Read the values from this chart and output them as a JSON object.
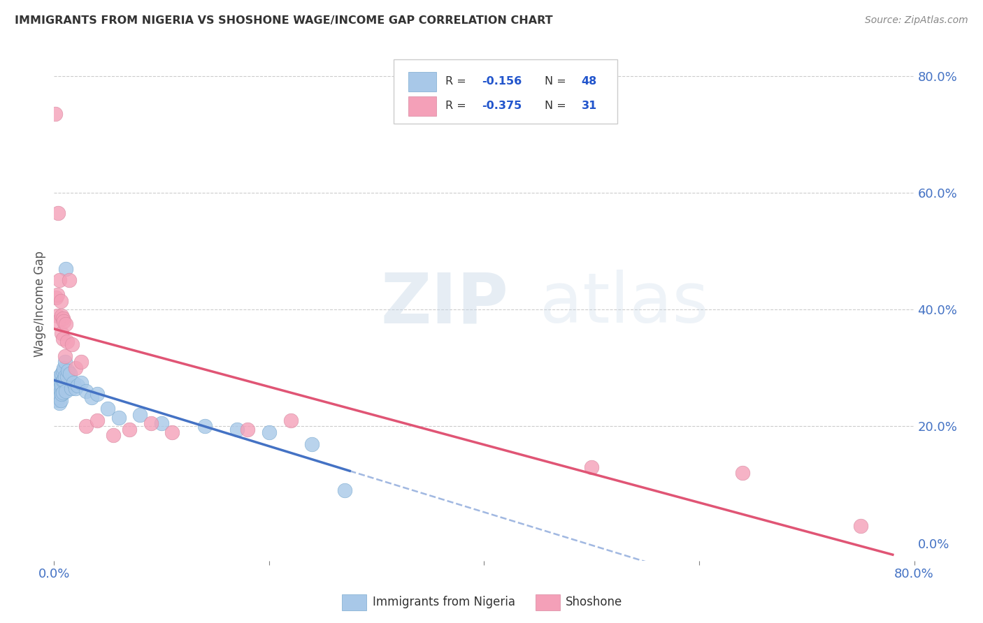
{
  "title": "IMMIGRANTS FROM NIGERIA VS SHOSHONE WAGE/INCOME GAP CORRELATION CHART",
  "source": "Source: ZipAtlas.com",
  "ylabel": "Wage/Income Gap",
  "xlim": [
    0.0,
    0.8
  ],
  "ylim": [
    -0.03,
    0.85
  ],
  "yticks_right": [
    0.0,
    0.2,
    0.4,
    0.6,
    0.8
  ],
  "ytick_right_labels": [
    "0.0%",
    "20.0%",
    "40.0%",
    "60.0%",
    "80.0%"
  ],
  "nigeria_color": "#a8c8e8",
  "shoshone_color": "#f4a0b8",
  "nigeria_line_color": "#4472c4",
  "shoshone_line_color": "#e05575",
  "watermark_zip": "ZIP",
  "watermark_atlas": "atlas",
  "nigeria_R": "-0.156",
  "nigeria_N": "48",
  "shoshone_R": "-0.375",
  "shoshone_N": "31",
  "nigeria_scatter_x": [
    0.001,
    0.002,
    0.002,
    0.003,
    0.003,
    0.003,
    0.004,
    0.004,
    0.004,
    0.005,
    0.005,
    0.005,
    0.005,
    0.006,
    0.006,
    0.006,
    0.007,
    0.007,
    0.007,
    0.008,
    0.008,
    0.008,
    0.009,
    0.009,
    0.01,
    0.01,
    0.011,
    0.011,
    0.012,
    0.013,
    0.015,
    0.016,
    0.018,
    0.02,
    0.022,
    0.025,
    0.03,
    0.035,
    0.04,
    0.05,
    0.06,
    0.08,
    0.1,
    0.14,
    0.17,
    0.2,
    0.24,
    0.27
  ],
  "nigeria_scatter_y": [
    0.255,
    0.265,
    0.25,
    0.27,
    0.26,
    0.245,
    0.28,
    0.265,
    0.25,
    0.285,
    0.27,
    0.255,
    0.24,
    0.275,
    0.26,
    0.245,
    0.29,
    0.27,
    0.255,
    0.295,
    0.278,
    0.258,
    0.3,
    0.28,
    0.31,
    0.285,
    0.47,
    0.26,
    0.285,
    0.295,
    0.29,
    0.265,
    0.275,
    0.265,
    0.27,
    0.275,
    0.26,
    0.25,
    0.255,
    0.23,
    0.215,
    0.22,
    0.205,
    0.2,
    0.195,
    0.19,
    0.17,
    0.09
  ],
  "shoshone_scatter_x": [
    0.001,
    0.002,
    0.003,
    0.003,
    0.004,
    0.004,
    0.005,
    0.006,
    0.007,
    0.007,
    0.008,
    0.008,
    0.009,
    0.01,
    0.011,
    0.012,
    0.014,
    0.017,
    0.02,
    0.025,
    0.03,
    0.04,
    0.055,
    0.07,
    0.09,
    0.11,
    0.18,
    0.22,
    0.5,
    0.64,
    0.75
  ],
  "shoshone_scatter_y": [
    0.735,
    0.42,
    0.425,
    0.39,
    0.565,
    0.38,
    0.45,
    0.415,
    0.39,
    0.36,
    0.385,
    0.35,
    0.38,
    0.32,
    0.375,
    0.345,
    0.45,
    0.34,
    0.3,
    0.31,
    0.2,
    0.21,
    0.185,
    0.195,
    0.205,
    0.19,
    0.195,
    0.21,
    0.13,
    0.12,
    0.03
  ]
}
